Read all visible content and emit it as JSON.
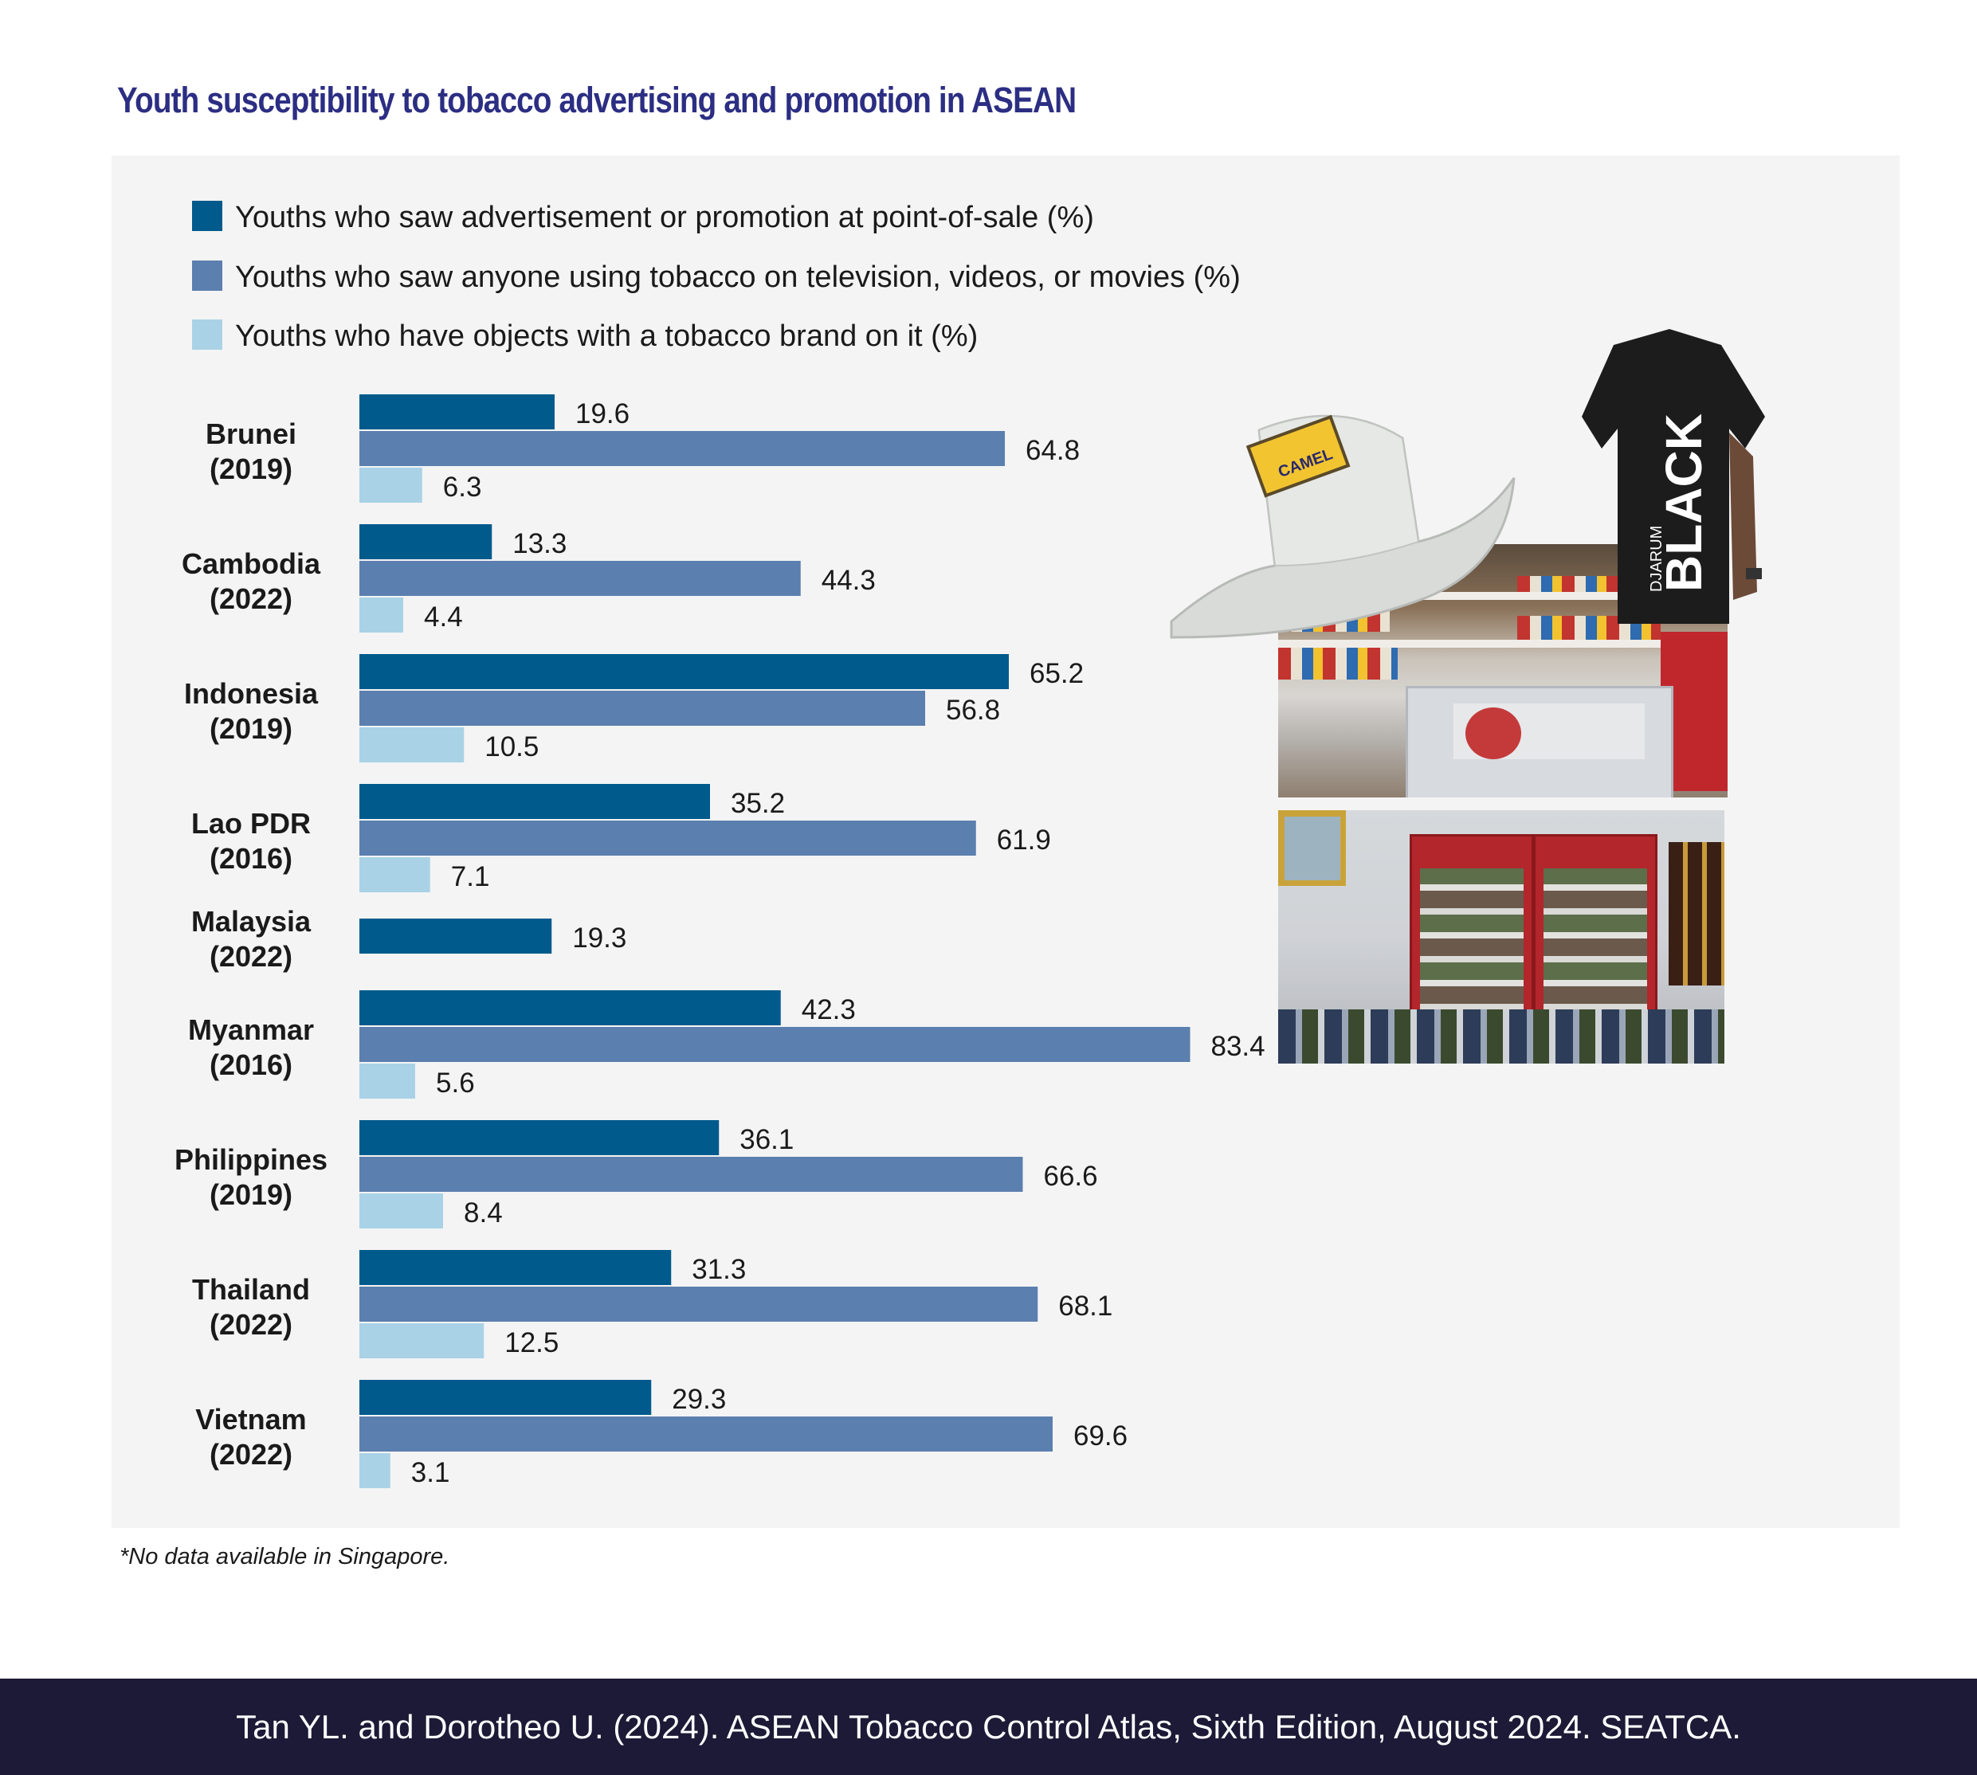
{
  "title": "Youth susceptibility to tobacco advertising and promotion in ASEAN",
  "note": "*No data available in Singapore.",
  "footer": "Tan YL. and Dorotheo U. (2024). ASEAN Tobacco Control Atlas, Sixth Edition, August 2024. SEATCA.",
  "photos": {
    "hat_badge_line1": "CAMEL",
    "shirt_brand_small": "DJARUM",
    "shirt_brand_big": "BLACK"
  },
  "colors": {
    "series1": "#005a8c",
    "series2": "#5b7fae",
    "series3": "#a9d2e6",
    "title": "#2c2e83",
    "panel": "#f4f4f4",
    "footer_bg": "#1c1a36"
  },
  "chart_data": {
    "type": "bar",
    "orientation": "horizontal",
    "title": "Youth susceptibility to tobacco advertising and promotion in ASEAN",
    "legend_position": "top-left",
    "grid": false,
    "xlim": [
      0,
      90
    ],
    "categories": [
      [
        "Brunei",
        "(2019)"
      ],
      [
        "Cambodia",
        "(2022)"
      ],
      [
        "Indonesia",
        "(2019)"
      ],
      [
        "Lao PDR",
        "(2016)"
      ],
      [
        "Malaysia",
        "(2022)"
      ],
      [
        "Myanmar",
        "(2016)"
      ],
      [
        "Philippines",
        "(2019)"
      ],
      [
        "Thailand",
        "(2022)"
      ],
      [
        "Vietnam",
        "(2022)"
      ]
    ],
    "series": [
      {
        "name": "Youths who saw advertisement or promotion at point-of-sale (%)",
        "values": [
          19.6,
          13.3,
          65.2,
          35.2,
          19.3,
          42.3,
          36.1,
          31.3,
          29.3
        ]
      },
      {
        "name": "Youths who saw anyone using tobacco on television, videos, or movies (%)",
        "values": [
          64.8,
          44.3,
          56.8,
          61.9,
          null,
          83.4,
          66.6,
          68.1,
          69.6
        ]
      },
      {
        "name": "Youths who have objects with a tobacco brand on it (%)",
        "values": [
          6.3,
          4.4,
          10.5,
          7.1,
          null,
          5.6,
          8.4,
          12.5,
          3.1
        ]
      }
    ]
  }
}
